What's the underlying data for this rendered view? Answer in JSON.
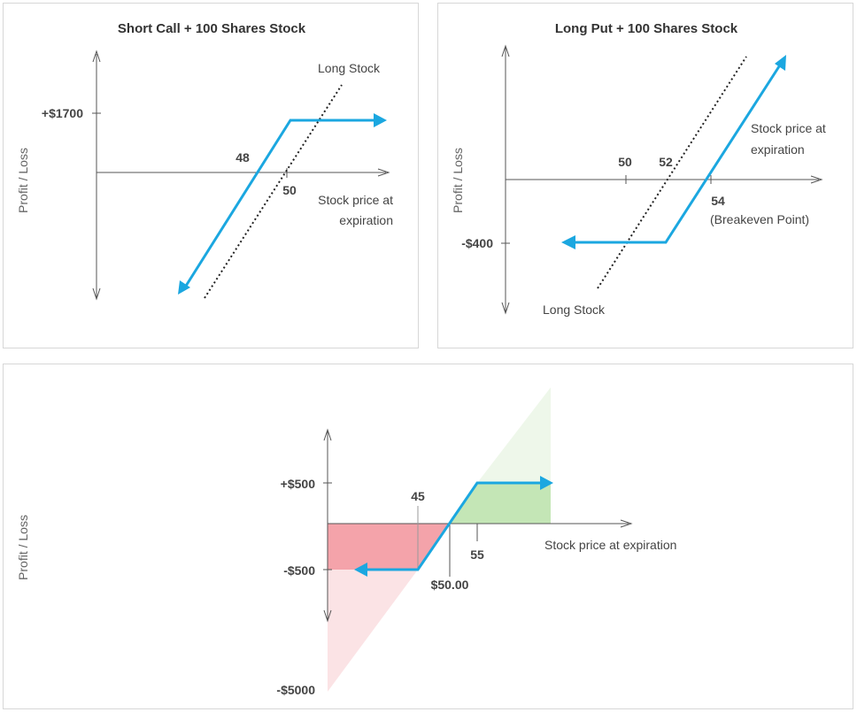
{
  "colors": {
    "payoff": "#1ba7e0",
    "axis": "#555555",
    "loss_fill": "#f4a3aa",
    "loss_fill_light": "#fbe3e5",
    "gain_fill": "#c4e6b6",
    "gain_fill_light": "#eef7ea"
  },
  "chart1": {
    "title": "Short Call + 100 Shares Stock",
    "y_label": "Profit / Loss",
    "y_tick": "+$1700",
    "x_tick_48": "48",
    "x_tick_50": "50",
    "long_stock_label": "Long Stock",
    "x_label_line1": "Stock price at",
    "x_label_line2": "expiration"
  },
  "chart2": {
    "title": "Long Put + 100 Shares Stock",
    "y_label": "Profit / Loss",
    "y_tick": "-$400",
    "x_tick_50": "50",
    "x_tick_52": "52",
    "x_tick_54": "54",
    "breakeven_label": "(Breakeven Point)",
    "long_stock_label": "Long Stock",
    "x_label_line1": "Stock price at",
    "x_label_line2": "expiration"
  },
  "chart3": {
    "y_label": "Profit / Loss",
    "y_tick_top": "+$500",
    "y_tick_mid": "-$500",
    "y_tick_bottom": "-$5000",
    "x_tick_45": "45",
    "x_tick_50": "$50.00",
    "x_tick_55": "55",
    "x_label": "Stock price at expiration"
  }
}
